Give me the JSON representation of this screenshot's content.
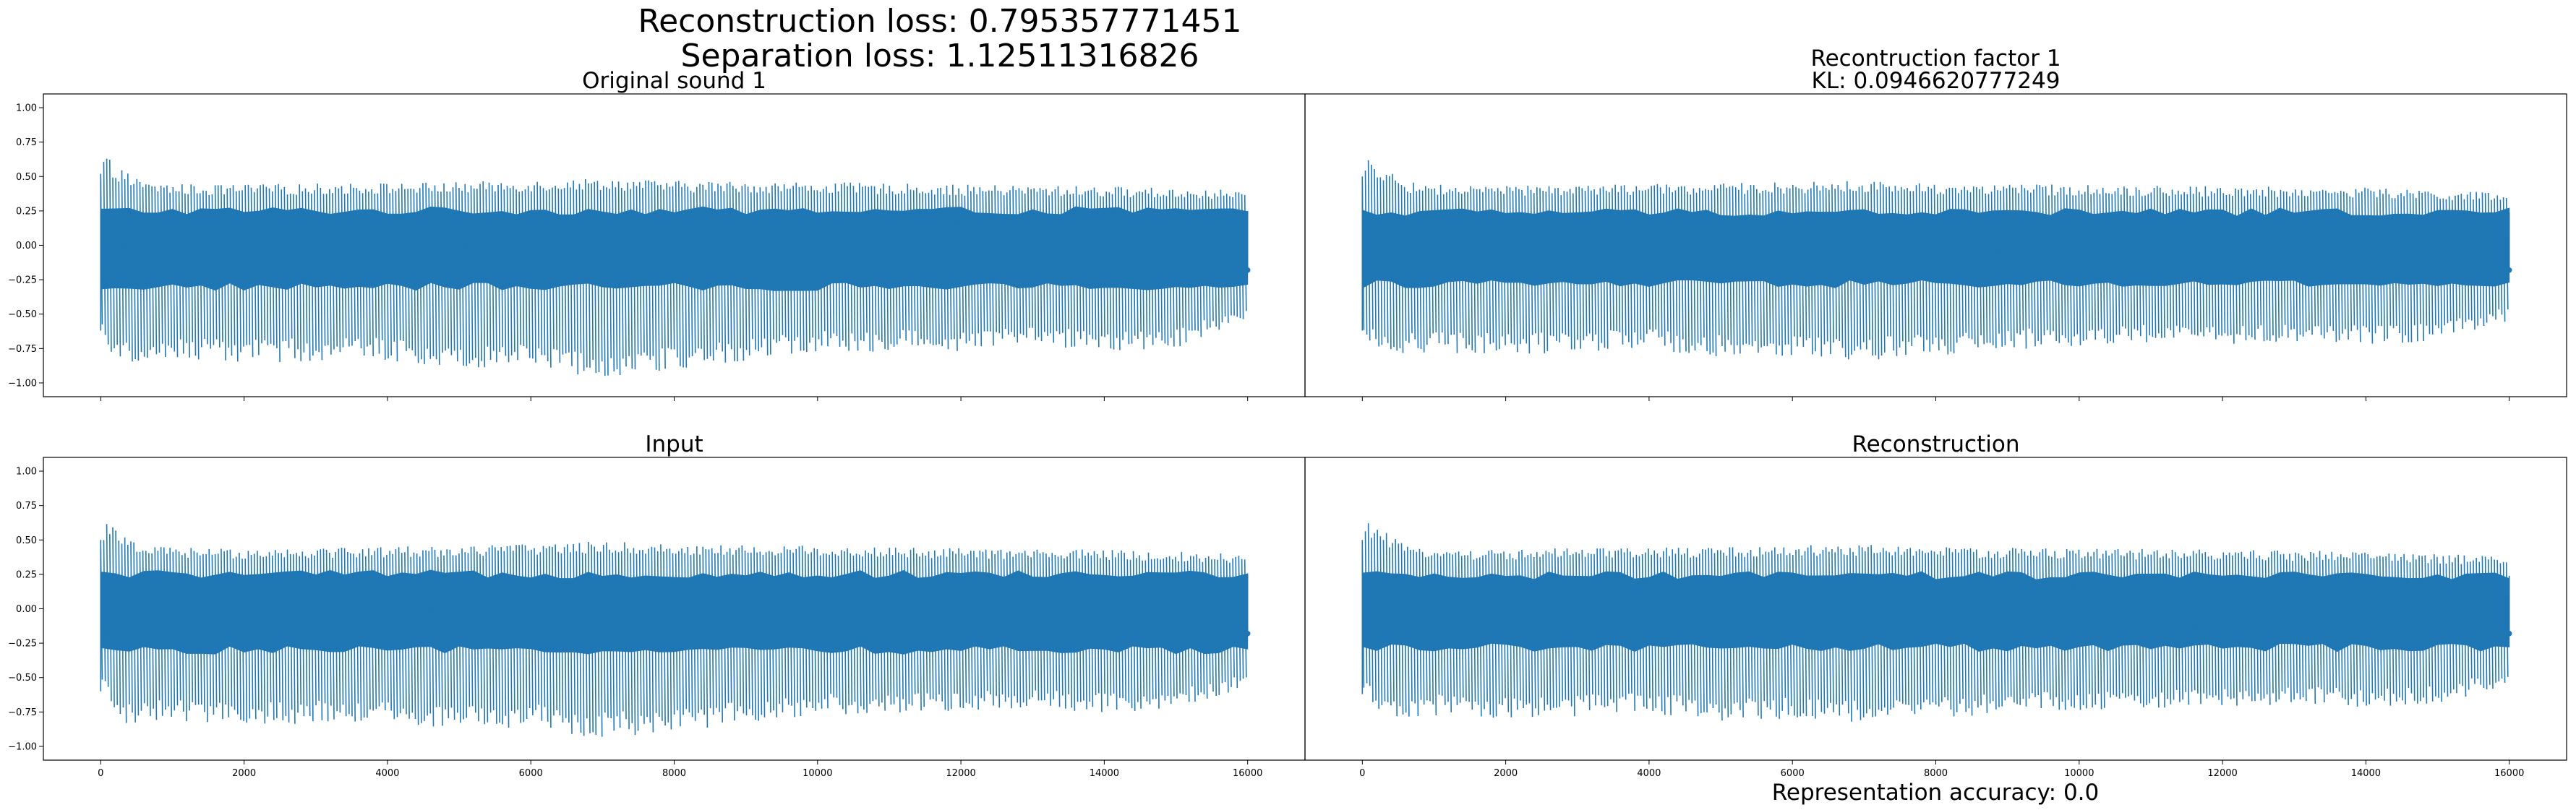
{
  "figure": {
    "suptitle_line1": "Reconstruction loss: 0.795357771451",
    "suptitle_line2": "Separation loss: 1.12511316826",
    "footer": "Representation accuracy: 0.0"
  },
  "colors": {
    "signal": "#1f77b4",
    "axes": "#000000",
    "background": "#ffffff"
  },
  "chart_data": [
    {
      "type": "line",
      "position": "top-left",
      "title_lines": [
        "Original sound 1"
      ],
      "xlim": [
        -800,
        16800
      ],
      "ylim": [
        -1.1,
        1.1
      ],
      "yticks": [
        -1.0,
        -0.75,
        -0.5,
        -0.25,
        0.0,
        0.25,
        0.5,
        0.75,
        1.0
      ],
      "ytick_labels": [
        "−1.00",
        "−0.75",
        "−0.50",
        "−0.25",
        "0.00",
        "0.25",
        "0.50",
        "0.75",
        "1.00"
      ],
      "xticks": [
        0,
        2000,
        4000,
        6000,
        8000,
        10000,
        12000,
        14000,
        16000
      ],
      "xtick_labels": [],
      "series": [
        {
          "x": [
            0,
            16000
          ],
          "n_samples": 16000,
          "upper_envelope": [
            [
              0,
              0.52
            ],
            [
              60,
              0.66
            ],
            [
              200,
              0.58
            ],
            [
              600,
              0.46
            ],
            [
              1500,
              0.44
            ],
            [
              3000,
              0.45
            ],
            [
              5000,
              0.46
            ],
            [
              7000,
              0.49
            ],
            [
              8000,
              0.47
            ],
            [
              10000,
              0.46
            ],
            [
              12000,
              0.44
            ],
            [
              14000,
              0.43
            ],
            [
              16000,
              0.4
            ]
          ],
          "lower_envelope": [
            [
              0,
              -0.62
            ],
            [
              200,
              -0.88
            ],
            [
              1000,
              -0.84
            ],
            [
              2000,
              -0.86
            ],
            [
              3000,
              -0.84
            ],
            [
              4000,
              -0.84
            ],
            [
              5000,
              -0.9
            ],
            [
              6000,
              -0.86
            ],
            [
              6500,
              -0.94
            ],
            [
              7000,
              -0.95
            ],
            [
              8000,
              -0.92
            ],
            [
              9000,
              -0.84
            ],
            [
              10000,
              -0.78
            ],
            [
              11000,
              -0.77
            ],
            [
              12000,
              -0.77
            ],
            [
              13000,
              -0.72
            ],
            [
              14000,
              -0.78
            ],
            [
              15000,
              -0.74
            ],
            [
              16000,
              -0.58
            ]
          ],
          "core_upper": 0.25,
          "core_lower": -0.3,
          "end_value": -0.18
        }
      ]
    },
    {
      "type": "line",
      "position": "top-right",
      "title_lines": [
        "Recontruction factor 1",
        "KL: 0.0946620777249"
      ],
      "xlim": [
        -800,
        16800
      ],
      "ylim": [
        -1.1,
        1.1
      ],
      "yticks": [],
      "ytick_labels": [],
      "xticks": [
        0,
        2000,
        4000,
        6000,
        8000,
        10000,
        12000,
        14000,
        16000
      ],
      "xtick_labels": [],
      "series": [
        {
          "x": [
            0,
            16000
          ],
          "n_samples": 16000,
          "upper_envelope": [
            [
              0,
              0.5
            ],
            [
              60,
              0.64
            ],
            [
              200,
              0.6
            ],
            [
              600,
              0.46
            ],
            [
              1500,
              0.43
            ],
            [
              3000,
              0.44
            ],
            [
              5000,
              0.45
            ],
            [
              7000,
              0.47
            ],
            [
              8000,
              0.45
            ],
            [
              10000,
              0.44
            ],
            [
              12000,
              0.43
            ],
            [
              14000,
              0.42
            ],
            [
              16000,
              0.38
            ]
          ],
          "lower_envelope": [
            [
              0,
              -0.62
            ],
            [
              200,
              -0.8
            ],
            [
              1000,
              -0.78
            ],
            [
              2000,
              -0.8
            ],
            [
              3000,
              -0.78
            ],
            [
              4000,
              -0.76
            ],
            [
              5000,
              -0.82
            ],
            [
              6000,
              -0.8
            ],
            [
              7000,
              -0.84
            ],
            [
              8000,
              -0.8
            ],
            [
              9000,
              -0.76
            ],
            [
              10000,
              -0.74
            ],
            [
              11000,
              -0.72
            ],
            [
              12000,
              -0.72
            ],
            [
              13000,
              -0.7
            ],
            [
              14000,
              -0.72
            ],
            [
              15000,
              -0.7
            ],
            [
              16000,
              -0.55
            ]
          ],
          "core_upper": 0.24,
          "core_lower": -0.28,
          "end_value": -0.18
        }
      ]
    },
    {
      "type": "line",
      "position": "bottom-left",
      "title_lines": [
        "Input"
      ],
      "xlim": [
        -800,
        16800
      ],
      "ylim": [
        -1.1,
        1.1
      ],
      "yticks": [
        -1.0,
        -0.75,
        -0.5,
        -0.25,
        0.0,
        0.25,
        0.5,
        0.75,
        1.0
      ],
      "ytick_labels": [
        "−1.00",
        "−0.75",
        "−0.50",
        "−0.25",
        "0.00",
        "0.25",
        "0.50",
        "0.75",
        "1.00"
      ],
      "xticks": [
        0,
        2000,
        4000,
        6000,
        8000,
        10000,
        12000,
        14000,
        16000
      ],
      "xtick_labels": [
        "0",
        "2000",
        "4000",
        "6000",
        "8000",
        "10000",
        "12000",
        "14000",
        "16000"
      ],
      "series": [
        {
          "x": [
            0,
            16000
          ],
          "n_samples": 16000,
          "upper_envelope": [
            [
              0,
              0.5
            ],
            [
              60,
              0.64
            ],
            [
              200,
              0.58
            ],
            [
              600,
              0.46
            ],
            [
              1500,
              0.44
            ],
            [
              3000,
              0.45
            ],
            [
              5000,
              0.46
            ],
            [
              7000,
              0.49
            ],
            [
              8000,
              0.47
            ],
            [
              10000,
              0.46
            ],
            [
              12000,
              0.44
            ],
            [
              14000,
              0.43
            ],
            [
              16000,
              0.4
            ]
          ],
          "lower_envelope": [
            [
              0,
              -0.6
            ],
            [
              200,
              -0.86
            ],
            [
              1000,
              -0.82
            ],
            [
              2000,
              -0.85
            ],
            [
              3000,
              -0.83
            ],
            [
              4000,
              -0.82
            ],
            [
              5000,
              -0.88
            ],
            [
              6000,
              -0.86
            ],
            [
              6500,
              -0.92
            ],
            [
              7000,
              -0.94
            ],
            [
              8000,
              -0.9
            ],
            [
              9000,
              -0.83
            ],
            [
              10000,
              -0.77
            ],
            [
              11000,
              -0.76
            ],
            [
              12000,
              -0.76
            ],
            [
              13000,
              -0.71
            ],
            [
              14000,
              -0.77
            ],
            [
              15000,
              -0.73
            ],
            [
              16000,
              -0.57
            ]
          ],
          "core_upper": 0.25,
          "core_lower": -0.3,
          "end_value": -0.18
        }
      ]
    },
    {
      "type": "line",
      "position": "bottom-right",
      "title_lines": [
        "Reconstruction"
      ],
      "xlim": [
        -800,
        16800
      ],
      "ylim": [
        -1.1,
        1.1
      ],
      "yticks": [],
      "ytick_labels": [],
      "xticks": [
        0,
        2000,
        4000,
        6000,
        8000,
        10000,
        12000,
        14000,
        16000
      ],
      "xtick_labels": [
        "0",
        "2000",
        "4000",
        "6000",
        "8000",
        "10000",
        "12000",
        "14000",
        "16000"
      ],
      "series": [
        {
          "x": [
            0,
            16000
          ],
          "n_samples": 16000,
          "upper_envelope": [
            [
              0,
              0.5
            ],
            [
              60,
              0.64
            ],
            [
              200,
              0.6
            ],
            [
              600,
              0.46
            ],
            [
              1500,
              0.43
            ],
            [
              3000,
              0.44
            ],
            [
              5000,
              0.45
            ],
            [
              7000,
              0.47
            ],
            [
              8000,
              0.45
            ],
            [
              10000,
              0.44
            ],
            [
              12000,
              0.43
            ],
            [
              14000,
              0.42
            ],
            [
              16000,
              0.38
            ]
          ],
          "lower_envelope": [
            [
              0,
              -0.62
            ],
            [
              200,
              -0.8
            ],
            [
              1000,
              -0.78
            ],
            [
              2000,
              -0.8
            ],
            [
              3000,
              -0.78
            ],
            [
              4000,
              -0.76
            ],
            [
              5000,
              -0.82
            ],
            [
              6000,
              -0.8
            ],
            [
              7000,
              -0.84
            ],
            [
              8000,
              -0.8
            ],
            [
              9000,
              -0.76
            ],
            [
              10000,
              -0.74
            ],
            [
              11000,
              -0.72
            ],
            [
              12000,
              -0.72
            ],
            [
              13000,
              -0.7
            ],
            [
              14000,
              -0.72
            ],
            [
              15000,
              -0.7
            ],
            [
              16000,
              -0.55
            ]
          ],
          "core_upper": 0.24,
          "core_lower": -0.28,
          "end_value": -0.18
        }
      ]
    }
  ]
}
